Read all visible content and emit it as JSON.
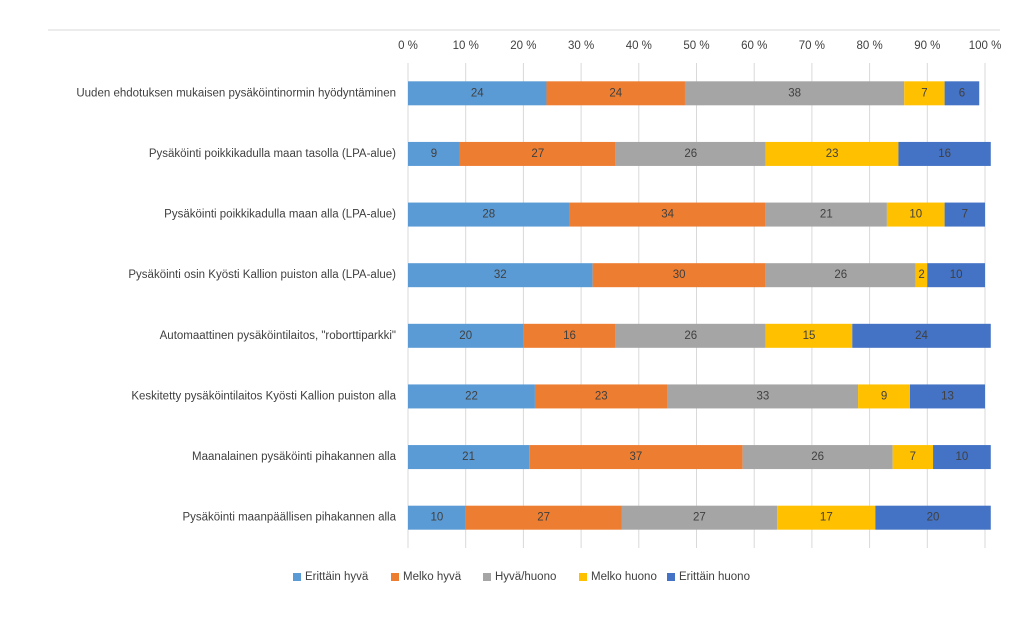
{
  "chart_data": {
    "type": "stacked-barh",
    "categories": [
      "Uuden ehdotuksen mukaisen pysäköintinormin hyödyntäminen",
      "Pysäköinti poikkikadulla maan tasolla (LPA-alue)",
      "Pysäköinti poikkikadulla maan alla (LPA-alue)",
      "Pysäköinti osin Kyösti Kallion puiston alla (LPA-alue)",
      "Automaattinen pysäköintilaitos, \"roborttiparkki\"",
      "Keskitetty pysäköintilaitos Kyösti Kallion puiston alla",
      "Maanalainen pysäköinti pihakannen alla",
      "Pysäköinti maanpäällisen pihakannen alla"
    ],
    "series": [
      {
        "name": "Erittäin hyvä",
        "color": "#5b9bd5",
        "values": [
          24,
          9,
          28,
          32,
          20,
          22,
          21,
          10
        ]
      },
      {
        "name": "Melko hyvä",
        "color": "#ed7d31",
        "values": [
          24,
          27,
          34,
          30,
          16,
          23,
          37,
          27
        ]
      },
      {
        "name": "Hyvä/huono",
        "color": "#a5a5a5",
        "values": [
          38,
          26,
          21,
          26,
          26,
          33,
          26,
          27
        ]
      },
      {
        "name": "Melko huono",
        "color": "#ffc000",
        "values": [
          7,
          23,
          10,
          2,
          15,
          9,
          7,
          17
        ]
      },
      {
        "name": "Erittäin huono",
        "color": "#4472c4",
        "values": [
          6,
          16,
          7,
          10,
          24,
          13,
          10,
          20
        ]
      }
    ],
    "xlim": [
      0,
      100
    ],
    "xticks": [
      {
        "value": 0,
        "label": "0 %"
      },
      {
        "value": 10,
        "label": "10 %"
      },
      {
        "value": 20,
        "label": "20 %"
      },
      {
        "value": 30,
        "label": "30 %"
      },
      {
        "value": 40,
        "label": "40 %"
      },
      {
        "value": 50,
        "label": "50 %"
      },
      {
        "value": 60,
        "label": "60 %"
      },
      {
        "value": 70,
        "label": "70 %"
      },
      {
        "value": 80,
        "label": "80 %"
      },
      {
        "value": 90,
        "label": "90 %"
      },
      {
        "value": 100,
        "label": "100 %"
      }
    ],
    "grid": true,
    "legend": "bottom"
  }
}
